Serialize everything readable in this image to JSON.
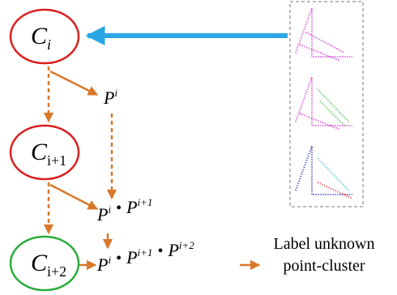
{
  "nodes": [
    {
      "base": "C",
      "sub": "i"
    },
    {
      "base": "C",
      "sub": "i+1"
    },
    {
      "base": "C",
      "sub": "i+2"
    }
  ],
  "products": [
    [
      {
        "base": "P",
        "sup": "i"
      }
    ],
    [
      {
        "base": "P",
        "sup": "i"
      },
      {
        "base": "P",
        "sup": "i+1"
      }
    ],
    [
      {
        "base": "P",
        "sup": "i"
      },
      {
        "base": "P",
        "sup": "i+1"
      },
      {
        "base": "P",
        "sup": "i+2"
      }
    ]
  ],
  "operator": "•",
  "label": [
    "Label unknown",
    "point-cluster"
  ]
}
